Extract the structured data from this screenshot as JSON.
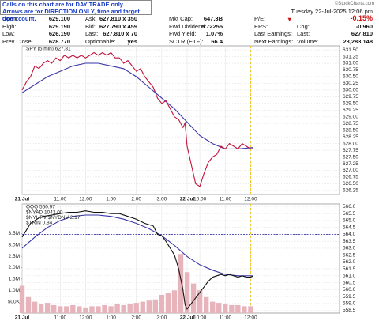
{
  "header": {
    "notice": [
      "Calls on this chart are for DAY TRADE only.",
      "Arrows are for DIRECTION ONLY, time and target don't count."
    ],
    "brand": "©StockCharts.com",
    "datetime": "Tuesday 22-Jul-2025  12:06 pm",
    "quote": {
      "rows": [
        [
          [
            "Open:",
            "629.100"
          ],
          [
            "Ask:",
            "627.810 x 350"
          ],
          [
            "Mkt Cap:",
            "647.3B"
          ],
          [
            "P/E:"
          ]
        ],
        [
          [
            "High:",
            "629.190"
          ],
          [
            "Bid:",
            "627.790 x 459"
          ],
          [
            "Fwd Dividend:",
            "6.72255"
          ],
          [
            "EPS:"
          ]
        ],
        [
          [
            "Low:",
            "626.190"
          ],
          [
            "Last:",
            "627.810 x 70"
          ],
          [
            "Fwd Yield:",
            "1.07%"
          ],
          [
            "Last Earnings:"
          ]
        ],
        [
          [
            "Prev Close:",
            "628.770"
          ],
          [
            "Optionable:",
            "yes"
          ],
          [
            "SCTR (ETF):",
            "66.4"
          ],
          [
            "Next Earnings:"
          ]
        ]
      ]
    },
    "change_pct": "-0.15%",
    "right": [
      [
        "Chg:",
        "-0.960"
      ],
      [
        "Last:",
        "627.810"
      ],
      [
        "Volume:",
        "23,283,148"
      ]
    ]
  },
  "chart_data": [
    {
      "type": "line",
      "title": "SPY (5 min) 627.81",
      "xlim": [
        0,
        150
      ],
      "ylim": [
        626.1,
        631.65
      ],
      "ref_line": 628.77,
      "xticks": [
        {
          "value": 0,
          "label": "21 Jul"
        },
        {
          "value": 18,
          "label": "11:00"
        },
        {
          "value": 30,
          "label": "12:00"
        },
        {
          "value": 42,
          "label": "1:00"
        },
        {
          "value": 54,
          "label": "2:00"
        },
        {
          "value": 66,
          "label": "3:00"
        },
        {
          "value": 78,
          "label": "22 Jul"
        },
        {
          "value": 84,
          "label": "10:00"
        },
        {
          "value": 96,
          "label": "11:00"
        },
        {
          "value": 108,
          "label": "12:00"
        }
      ],
      "yticks": [
        {
          "value": 631.5,
          "label": "631.50"
        },
        631.25,
        {
          "value": 631,
          "label": "631.00"
        },
        630.75,
        {
          "value": 630.5,
          "label": "630.50"
        },
        630.25,
        {
          "value": 630,
          "label": "630.00"
        },
        629.75,
        {
          "value": 629.5,
          "label": "629.50"
        },
        629.25,
        {
          "value": 629,
          "label": "629.00"
        },
        628.75,
        {
          "value": 628.5,
          "label": "628.50"
        },
        628.25,
        {
          "value": 628,
          "label": "628.00"
        },
        627.75,
        {
          "value": 627.5,
          "label": "627.50"
        },
        627.25,
        {
          "value": 627,
          "label": "627.00"
        },
        626.75,
        {
          "value": 626.5,
          "label": "626.50"
        },
        626.25
      ],
      "series": [
        {
          "color": "#3a36a8",
          "x": [
            0,
            6,
            12,
            18,
            24,
            30,
            36,
            42,
            48,
            54,
            60,
            66,
            72,
            78,
            84,
            90,
            96,
            102,
            109
          ],
          "values": [
            629.9,
            630.2,
            630.5,
            630.7,
            630.9,
            631.0,
            631.0,
            630.9,
            630.8,
            630.5,
            630.1,
            629.7,
            629.3,
            628.8,
            628.3,
            628.0,
            627.8,
            627.8,
            627.85
          ]
        },
        {
          "color": "#c0143c",
          "x": [
            0,
            2,
            4,
            6,
            8,
            10,
            12,
            14,
            16,
            18,
            20,
            22,
            24,
            26,
            28,
            30,
            32,
            34,
            36,
            38,
            40,
            42,
            44,
            46,
            48,
            50,
            52,
            54,
            56,
            58,
            60,
            62,
            64,
            66,
            68,
            70,
            72,
            74,
            76,
            77,
            78,
            80,
            82,
            84,
            86,
            88,
            90,
            92,
            94,
            96,
            98,
            100,
            102,
            104,
            106,
            108,
            109
          ],
          "values": [
            630.0,
            630.3,
            630.5,
            630.9,
            630.8,
            631.0,
            631.1,
            631.0,
            631.2,
            631.1,
            631.3,
            631.2,
            631.3,
            631.2,
            631.3,
            631.2,
            631.3,
            631.4,
            631.3,
            631.4,
            631.3,
            631.4,
            631.2,
            631.2,
            631.0,
            631.1,
            630.9,
            630.7,
            630.8,
            630.5,
            630.3,
            630.1,
            629.7,
            629.5,
            629.6,
            629.3,
            629.0,
            628.9,
            628.6,
            628.77,
            627.9,
            627.2,
            626.5,
            626.4,
            626.9,
            627.3,
            627.5,
            627.6,
            627.9,
            627.8,
            628.0,
            627.9,
            627.8,
            628.0,
            627.9,
            627.8,
            627.81
          ]
        }
      ]
    },
    {
      "type": "line",
      "title": "QQQ 560.97",
      "legend": [
        "$NYAD 1042.00",
        "$NYUPV:$NYDNV 2.17",
        "$TRIN 0.84"
      ],
      "xlim": [
        0,
        150
      ],
      "ylim": [
        558.3,
        566.2
      ],
      "y2lim": [
        0,
        4800000
      ],
      "ref_line": 564.0,
      "xticks": [
        {
          "value": 0,
          "label": "21 Jul"
        },
        {
          "value": 18,
          "label": "11:00"
        },
        {
          "value": 30,
          "label": "12:00"
        },
        {
          "value": 42,
          "label": "1:00"
        },
        {
          "value": 54,
          "label": "2:00"
        },
        {
          "value": 66,
          "label": "3:00"
        },
        {
          "value": 78,
          "label": "22 Jul"
        },
        {
          "value": 84,
          "label": "10:00"
        },
        {
          "value": 96,
          "label": "11:00"
        },
        {
          "value": 108,
          "label": "12:00"
        }
      ],
      "yticks": [
        {
          "value": 566,
          "label": "566.0"
        },
        565.5,
        {
          "value": 565,
          "label": "565.0"
        },
        564.5,
        {
          "value": 564,
          "label": "564.0"
        },
        563.5,
        {
          "value": 563,
          "label": "563.0"
        },
        562.5,
        {
          "value": 562,
          "label": "562.0"
        },
        561.5,
        {
          "value": 561,
          "label": "561.0"
        },
        560.5,
        {
          "value": 560,
          "label": "560.0"
        },
        559.5,
        {
          "value": 559,
          "label": "559.0"
        },
        558.5
      ],
      "y2ticks": [
        {
          "value": 500000,
          "label": "500K"
        },
        {
          "value": 1000000,
          "label": "1.0M"
        },
        {
          "value": 1500000,
          "label": "1.5M"
        },
        {
          "value": 2000000,
          "label": "2.0M"
        },
        {
          "value": 2500000,
          "label": "2.5M"
        },
        {
          "value": 3000000,
          "label": "3.0M"
        },
        {
          "value": 3500000,
          "label": "3.5M"
        }
      ],
      "series": [
        {
          "type": "bar",
          "axis": "y2",
          "color": "#e8b4bc",
          "x": [
            0,
            3,
            6,
            9,
            12,
            15,
            18,
            21,
            24,
            27,
            30,
            33,
            36,
            39,
            42,
            45,
            48,
            51,
            54,
            57,
            60,
            63,
            66,
            69,
            72,
            75,
            78,
            81,
            84,
            87,
            90,
            93,
            96,
            99,
            102,
            105,
            108
          ],
          "values": [
            1200000,
            700000,
            500000,
            400000,
            450000,
            350000,
            300000,
            300000,
            350000,
            300000,
            250000,
            300000,
            300000,
            350000,
            300000,
            400000,
            350000,
            400000,
            450000,
            500000,
            550000,
            600000,
            800000,
            900000,
            1000000,
            2600000,
            1800000,
            1300000,
            1000000,
            700000,
            500000,
            450000,
            400000,
            350000,
            350000,
            300000,
            300000
          ]
        },
        {
          "color": "#3a36a8",
          "x": [
            0,
            6,
            12,
            18,
            24,
            30,
            36,
            42,
            48,
            54,
            60,
            66,
            72,
            78,
            84,
            90,
            96,
            102,
            109
          ],
          "values": [
            563.0,
            563.8,
            564.5,
            565.0,
            565.3,
            565.4,
            565.4,
            565.3,
            565.1,
            564.8,
            564.4,
            563.9,
            563.2,
            562.4,
            561.8,
            561.4,
            561.1,
            561.0,
            561.0
          ]
        },
        {
          "color": "#111111",
          "x": [
            0,
            2,
            4,
            6,
            8,
            10,
            14,
            18,
            22,
            26,
            30,
            34,
            38,
            42,
            46,
            50,
            54,
            58,
            62,
            64,
            66,
            68,
            70,
            72,
            74,
            76,
            77,
            78,
            80,
            82,
            84,
            86,
            88,
            90,
            92,
            94,
            96,
            98,
            100,
            102,
            104,
            106,
            108,
            109
          ],
          "values": [
            563.8,
            564.3,
            564.8,
            565.0,
            565.2,
            565.3,
            565.4,
            565.5,
            565.6,
            565.6,
            565.7,
            565.6,
            565.6,
            565.5,
            565.5,
            565.3,
            565.1,
            564.8,
            564.6,
            564.0,
            563.9,
            563.5,
            563.0,
            562.5,
            561.5,
            560.0,
            558.9,
            558.6,
            559.0,
            559.4,
            559.8,
            560.2,
            560.6,
            560.9,
            561.0,
            561.1,
            561.0,
            561.1,
            561.0,
            560.9,
            561.0,
            560.9,
            560.9,
            560.97
          ]
        }
      ]
    }
  ]
}
